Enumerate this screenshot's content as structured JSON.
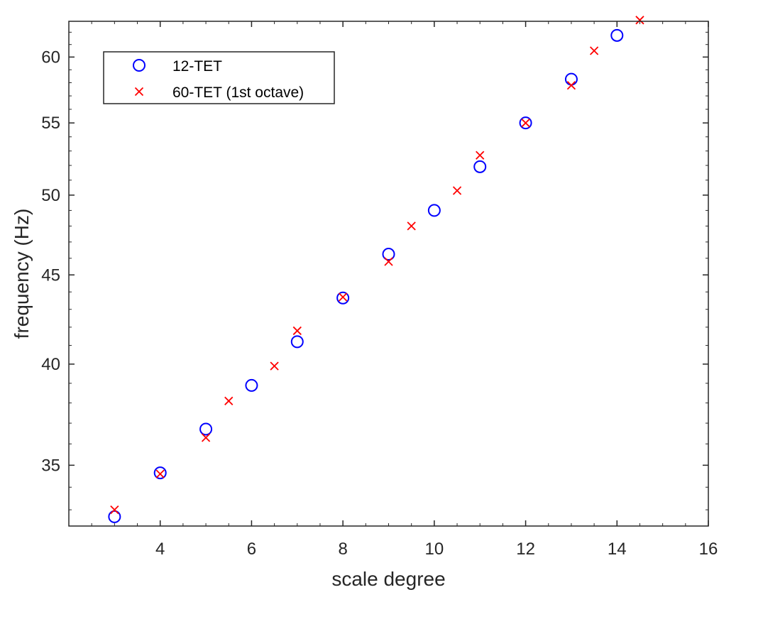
{
  "chart_data": {
    "type": "scatter",
    "xlabel": "scale degree",
    "ylabel": "frequency (Hz)",
    "xlim": [
      2,
      16
    ],
    "ylim": [
      32.3,
      62.9
    ],
    "yscale": "log",
    "grid": false,
    "box": true,
    "legend_position": "top-left",
    "x_ticks": [
      4,
      6,
      8,
      10,
      12,
      14,
      16
    ],
    "x_tick_labels": [
      "4",
      "6",
      "8",
      "10",
      "12",
      "14",
      "16"
    ],
    "y_ticks": [
      35,
      40,
      45,
      50,
      55,
      60
    ],
    "y_tick_labels": [
      "35",
      "40",
      "45",
      "50",
      "55",
      "60"
    ],
    "series": [
      {
        "name": "12-TET",
        "marker": "circle",
        "color": "#0000ff",
        "x": [
          3,
          4,
          5,
          6,
          7,
          8,
          9,
          10,
          11,
          12,
          13,
          14
        ],
        "y": [
          32.7,
          34.65,
          36.71,
          38.89,
          41.2,
          43.65,
          46.25,
          49.0,
          51.91,
          55.0,
          58.27,
          61.74
        ]
      },
      {
        "name": "60-TET (1st octave)",
        "marker": "x",
        "color": "#ff0000",
        "x": [
          3,
          4,
          5,
          5.5,
          6.5,
          7,
          8,
          9,
          9.5,
          10.5,
          11,
          12,
          13,
          13.5,
          14.5
        ],
        "y": [
          33.0,
          34.6,
          36.3,
          38.1,
          39.9,
          41.8,
          43.7,
          45.8,
          48.0,
          50.3,
          52.7,
          55.0,
          57.8,
          60.5,
          63.0
        ]
      }
    ]
  }
}
